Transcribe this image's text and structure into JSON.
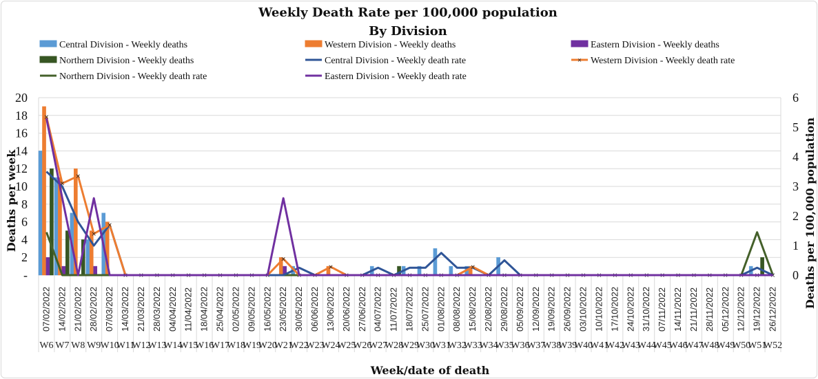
{
  "chart_data": {
    "type": "bar",
    "title": "Weekly Death Rate per 100,000 population",
    "subtitle": "By Division",
    "xlabel": "Week/date of death",
    "ylabel": "Deaths  per week",
    "y2label": "Deaths per 100,000 population",
    "ylim": [
      0,
      20
    ],
    "y2lim": [
      0,
      6
    ],
    "yticks": [
      "-",
      "2",
      "4",
      "6",
      "8",
      "10",
      "12",
      "14",
      "16",
      "18",
      "20"
    ],
    "y2ticks": [
      "0",
      "1",
      "2",
      "3",
      "4",
      "5",
      "6"
    ],
    "grid": true,
    "legend_position": "top",
    "categories": [
      "W6",
      "W7",
      "W8",
      "W9",
      "W10",
      "W11",
      "W12",
      "W13",
      "W14",
      "W15",
      "W16",
      "W17",
      "W18",
      "W19",
      "W20",
      "W21",
      "W22",
      "W23",
      "W24",
      "W25",
      "W26",
      "W27",
      "W28",
      "W29",
      "W30",
      "W31",
      "W32",
      "W33",
      "W34",
      "W35",
      "W36",
      "W37",
      "W38",
      "W39",
      "W40",
      "W41",
      "W42",
      "W43",
      "W44",
      "W45",
      "W46",
      "W47",
      "W48",
      "W49",
      "W50",
      "W51",
      "W52"
    ],
    "dates": [
      "07/02/2022",
      "14/02/2022",
      "21/02/2022",
      "28/02/2022",
      "07/03/2022",
      "14/03/2022",
      "21/03/2022",
      "28/03/2022",
      "04/04/2022",
      "11/04/2022",
      "18/04/2022",
      "25/04/2022",
      "02/05/2022",
      "09/05/2022",
      "16/05/2022",
      "23/05/2022",
      "30/05/2022",
      "06/06/2022",
      "13/06/2022",
      "20/06/2022",
      "27/06/2022",
      "04/07/2022",
      "11/07/2022",
      "18/07/2022",
      "25/07/2022",
      "01/08/2022",
      "08/08/2022",
      "15/08/2022",
      "22/08/2022",
      "29/08/2022",
      "05/09/2022",
      "12/09/2022",
      "19/09/2022",
      "26/09/2022",
      "03/10/2022",
      "10/10/2022",
      "17/10/2022",
      "24/10/2022",
      "31/10/2022",
      "07/11/2022",
      "14/11/2022",
      "21/11/2022",
      "28/11/2022",
      "05/12/2022",
      "12/12/2022",
      "19/12/2022",
      "26/12/2022"
    ],
    "bar_series": [
      {
        "name": "Central Division - Weekly deaths",
        "color": "#5b9bd5",
        "values": [
          14,
          11,
          7,
          4,
          7,
          0,
          0,
          0,
          0,
          0,
          0,
          0,
          0,
          0,
          0,
          0,
          1,
          0,
          0,
          0,
          0,
          1,
          0,
          1,
          1,
          3,
          1,
          1,
          0,
          2,
          0,
          0,
          0,
          0,
          0,
          0,
          0,
          0,
          0,
          0,
          0,
          0,
          0,
          0,
          0,
          1,
          0
        ]
      },
      {
        "name": "Western Division - Weekly deaths",
        "color": "#ed7d31",
        "values": [
          19,
          11,
          12,
          5,
          6,
          0,
          0,
          0,
          0,
          0,
          0,
          0,
          0,
          0,
          0,
          2,
          0,
          0,
          1,
          0,
          0,
          0,
          0,
          0,
          0,
          0,
          0,
          1,
          0,
          0,
          0,
          0,
          0,
          0,
          0,
          0,
          0,
          0,
          0,
          0,
          0,
          0,
          0,
          0,
          0,
          0,
          0
        ]
      },
      {
        "name": "Eastern Division - Weekly deaths",
        "color": "#7030a0",
        "values": [
          2,
          1,
          0,
          1,
          0,
          0,
          0,
          0,
          0,
          0,
          0,
          0,
          0,
          0,
          0,
          1,
          0,
          0,
          0,
          0,
          0,
          0,
          0,
          0,
          0,
          0,
          0,
          0,
          0,
          0,
          0,
          0,
          0,
          0,
          0,
          0,
          0,
          0,
          0,
          0,
          0,
          0,
          0,
          0,
          0,
          0,
          0
        ]
      },
      {
        "name": "Northern Division - Weekly deaths",
        "color": "#375623",
        "values": [
          12,
          5,
          4,
          0,
          0,
          0,
          0,
          0,
          0,
          0,
          0,
          0,
          0,
          0,
          0,
          0,
          0,
          0,
          0,
          0,
          0,
          0,
          1,
          0,
          0,
          0,
          0,
          0,
          0,
          0,
          0,
          0,
          0,
          0,
          0,
          0,
          0,
          0,
          0,
          0,
          0,
          0,
          0,
          0,
          0,
          2,
          0
        ]
      }
    ],
    "line_series": [
      {
        "name": "Central Division - Weekly death rate",
        "color": "#2f5597",
        "axis": "right",
        "values": [
          3.5,
          3.0,
          1.8,
          1.0,
          1.7,
          0,
          0,
          0,
          0,
          0,
          0,
          0,
          0,
          0,
          0,
          0,
          0.25,
          0,
          0,
          0,
          0,
          0.25,
          0,
          0.25,
          0.25,
          0.75,
          0.25,
          0.25,
          0,
          0.5,
          0,
          0,
          0,
          0,
          0,
          0,
          0,
          0,
          0,
          0,
          0,
          0,
          0,
          0,
          0,
          0.25,
          0
        ]
      },
      {
        "name": "Western Division - Weekly death rate",
        "color": "#ed7d31",
        "axis": "right",
        "marker": "x",
        "values": [
          5.35,
          3.1,
          3.35,
          1.4,
          1.7,
          0,
          0,
          0,
          0,
          0,
          0,
          0,
          0,
          0,
          0,
          0.55,
          0,
          0,
          0.28,
          0,
          0,
          0,
          0,
          0,
          0,
          0,
          0,
          0.28,
          0,
          0,
          0,
          0,
          0,
          0,
          0,
          0,
          0,
          0,
          0,
          0,
          0,
          0,
          0,
          0,
          0,
          0,
          0
        ]
      },
      {
        "name": "Eastern Division - Weekly death rate",
        "color": "#7030a0",
        "axis": "right",
        "values": [
          5.3,
          2.6,
          0,
          2.6,
          0,
          0,
          0,
          0,
          0,
          0,
          0,
          0,
          0,
          0,
          0,
          2.6,
          0,
          0,
          0,
          0,
          0,
          0,
          0,
          0,
          0,
          0,
          0,
          0,
          0,
          0,
          0,
          0,
          0,
          0,
          0,
          0,
          0,
          0,
          0,
          0,
          0,
          0,
          0,
          0,
          0,
          0,
          0
        ]
      },
      {
        "name": "Northern Division - Weekly death rate",
        "color": "#44602a",
        "axis": "right",
        "values": [
          1.45,
          0,
          0,
          0,
          0,
          0,
          0,
          0,
          0,
          0,
          0,
          0,
          0,
          0,
          0,
          0,
          0,
          0,
          0,
          0,
          0,
          0,
          0,
          0,
          0,
          0,
          0,
          0,
          0,
          0,
          0,
          0,
          0,
          0,
          0,
          0,
          0,
          0,
          0,
          0,
          0,
          0,
          0,
          0,
          0,
          1.45,
          0
        ]
      }
    ]
  },
  "legend": [
    {
      "label": "Central Division - Weekly deaths",
      "kind": "bar",
      "color": "#5b9bd5"
    },
    {
      "label": "Western Division - Weekly deaths",
      "kind": "bar",
      "color": "#ed7d31"
    },
    {
      "label": "Eastern Division - Weekly deaths",
      "kind": "bar",
      "color": "#7030a0"
    },
    {
      "label": "Northern Division - Weekly deaths",
      "kind": "bar",
      "color": "#375623"
    },
    {
      "label": "Central Division - Weekly death rate",
      "kind": "line",
      "color": "#2f5597"
    },
    {
      "label": "Western Division - Weekly death rate",
      "kind": "line-x",
      "color": "#ed7d31"
    },
    {
      "label": "Northern Division - Weekly death rate",
      "kind": "line",
      "color": "#44602a"
    },
    {
      "label": "Eastern Division - Weekly death rate",
      "kind": "line",
      "color": "#7030a0"
    }
  ]
}
